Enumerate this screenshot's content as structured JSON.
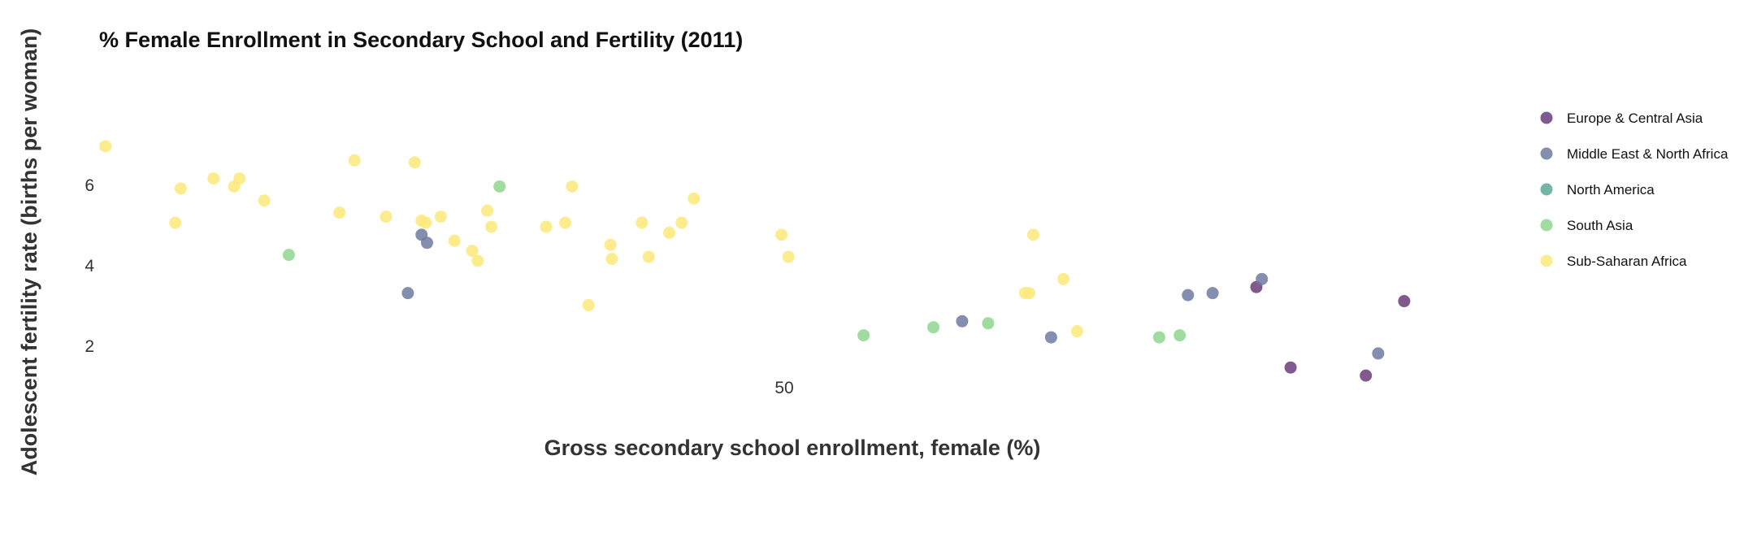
{
  "chart_data": {
    "type": "scatter",
    "title": "% Female Enrollment in Secondary School and Fertility (2011)",
    "xlabel": "Gross secondary school enrollment, female (%)",
    "ylabel": "Adolescent fertility rate (births per woman)",
    "xlim": [
      0,
      100
    ],
    "ylim": [
      0,
      8
    ],
    "x_ticks": [
      50
    ],
    "y_ticks": [
      2,
      4,
      6
    ],
    "grid": false,
    "legend_position": "right",
    "series": [
      {
        "name": "Europe & Central Asia",
        "color": "#6a3d7a",
        "points": [
          {
            "x": 84.5,
            "y": 3.45
          },
          {
            "x": 87.0,
            "y": 1.45
          },
          {
            "x": 92.5,
            "y": 1.25
          },
          {
            "x": 95.3,
            "y": 3.1
          }
        ]
      },
      {
        "name": "Middle East & North Africa",
        "color": "#6e7aa0",
        "points": [
          {
            "x": 22.5,
            "y": 3.3
          },
          {
            "x": 23.5,
            "y": 4.75
          },
          {
            "x": 23.9,
            "y": 4.55
          },
          {
            "x": 63.0,
            "y": 2.6
          },
          {
            "x": 69.5,
            "y": 2.2
          },
          {
            "x": 79.5,
            "y": 3.25
          },
          {
            "x": 81.3,
            "y": 3.3
          },
          {
            "x": 84.9,
            "y": 3.65
          },
          {
            "x": 93.4,
            "y": 1.8
          }
        ]
      },
      {
        "name": "North America",
        "color": "#5aa89a",
        "points": []
      },
      {
        "name": "South Asia",
        "color": "#8fd68f",
        "points": [
          {
            "x": 13.8,
            "y": 4.25
          },
          {
            "x": 29.2,
            "y": 5.95
          },
          {
            "x": 55.8,
            "y": 2.25
          },
          {
            "x": 60.9,
            "y": 2.45
          },
          {
            "x": 64.9,
            "y": 2.55
          },
          {
            "x": 77.4,
            "y": 2.2
          },
          {
            "x": 78.9,
            "y": 2.25
          }
        ]
      },
      {
        "name": "Sub-Saharan Africa",
        "color": "#fde97a",
        "points": [
          {
            "x": 0.4,
            "y": 6.95
          },
          {
            "x": 5.5,
            "y": 5.05
          },
          {
            "x": 5.9,
            "y": 5.9
          },
          {
            "x": 8.3,
            "y": 6.15
          },
          {
            "x": 9.8,
            "y": 5.95
          },
          {
            "x": 10.2,
            "y": 6.15
          },
          {
            "x": 12.0,
            "y": 5.6
          },
          {
            "x": 17.5,
            "y": 5.3
          },
          {
            "x": 18.6,
            "y": 6.6
          },
          {
            "x": 20.9,
            "y": 5.2
          },
          {
            "x": 23.0,
            "y": 6.55
          },
          {
            "x": 23.5,
            "y": 5.1
          },
          {
            "x": 23.8,
            "y": 5.05
          },
          {
            "x": 24.9,
            "y": 5.2
          },
          {
            "x": 25.9,
            "y": 4.6
          },
          {
            "x": 27.2,
            "y": 4.35
          },
          {
            "x": 27.6,
            "y": 4.1
          },
          {
            "x": 28.3,
            "y": 5.35
          },
          {
            "x": 28.6,
            "y": 4.95
          },
          {
            "x": 32.6,
            "y": 4.95
          },
          {
            "x": 34.0,
            "y": 5.05
          },
          {
            "x": 34.5,
            "y": 5.95
          },
          {
            "x": 35.7,
            "y": 3.0
          },
          {
            "x": 37.3,
            "y": 4.5
          },
          {
            "x": 37.4,
            "y": 4.15
          },
          {
            "x": 39.6,
            "y": 5.05
          },
          {
            "x": 40.1,
            "y": 4.2
          },
          {
            "x": 41.6,
            "y": 4.8
          },
          {
            "x": 42.5,
            "y": 5.05
          },
          {
            "x": 43.4,
            "y": 5.65
          },
          {
            "x": 49.8,
            "y": 4.75
          },
          {
            "x": 50.3,
            "y": 4.2
          },
          {
            "x": 67.6,
            "y": 3.3
          },
          {
            "x": 67.9,
            "y": 3.3
          },
          {
            "x": 68.2,
            "y": 4.75
          },
          {
            "x": 70.4,
            "y": 3.65
          },
          {
            "x": 71.4,
            "y": 2.35
          }
        ]
      }
    ]
  }
}
